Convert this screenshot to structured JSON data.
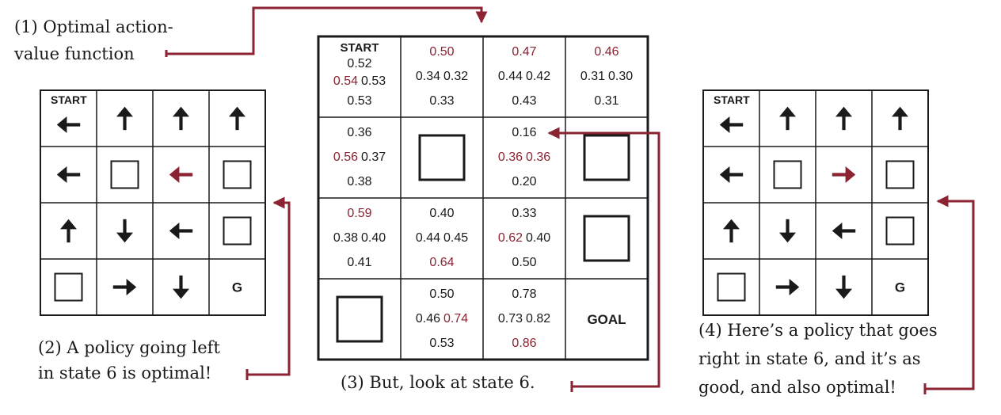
{
  "colors": {
    "accent": "#8b2332",
    "ink": "#1a1a1a",
    "grid": "#1a1a1a",
    "background": "#ffffff"
  },
  "captions": {
    "c1": [
      "(1) Optimal action-",
      "value function"
    ],
    "c2": [
      "(2) A policy going left",
      "in state 6 is optimal!"
    ],
    "c3": [
      "(3) But, look at state 6."
    ],
    "c4": [
      "(4) Here’s a policy that goes",
      "right in state 6, and it’s as",
      "good, and also optimal!"
    ]
  },
  "q_grid": {
    "start_label": "START",
    "goal_label": "GOAL",
    "cells": [
      {
        "state": 0,
        "type": "q",
        "up": "0.52",
        "left": "0.54",
        "right": "0.53",
        "down": "0.53",
        "best": [
          "left"
        ]
      },
      {
        "state": 1,
        "type": "q",
        "up": "0.50",
        "left": "0.34",
        "right": "0.32",
        "down": "0.33",
        "best": [
          "up"
        ]
      },
      {
        "state": 2,
        "type": "q",
        "up": "0.47",
        "left": "0.44",
        "right": "0.42",
        "down": "0.43",
        "best": [
          "up"
        ]
      },
      {
        "state": 3,
        "type": "q",
        "up": "0.46",
        "left": "0.31",
        "right": "0.30",
        "down": "0.31",
        "best": [
          "up"
        ]
      },
      {
        "state": 4,
        "type": "q",
        "up": "0.36",
        "left": "0.56",
        "right": "0.37",
        "down": "0.38",
        "best": [
          "left"
        ]
      },
      {
        "state": 5,
        "type": "wall"
      },
      {
        "state": 6,
        "type": "q",
        "up": "0.16",
        "left": "0.36",
        "right": "0.36",
        "down": "0.20",
        "best": [
          "left",
          "right"
        ]
      },
      {
        "state": 7,
        "type": "wall"
      },
      {
        "state": 8,
        "type": "q",
        "up": "0.59",
        "left": "0.38",
        "right": "0.40",
        "down": "0.41",
        "best": [
          "up"
        ]
      },
      {
        "state": 9,
        "type": "q",
        "up": "0.40",
        "left": "0.44",
        "right": "0.45",
        "down": "0.64",
        "best": [
          "down"
        ]
      },
      {
        "state": 10,
        "type": "q",
        "up": "0.33",
        "left": "0.62",
        "right": "0.40",
        "down": "0.50",
        "best": [
          "left"
        ]
      },
      {
        "state": 11,
        "type": "wall"
      },
      {
        "state": 12,
        "type": "wall"
      },
      {
        "state": 13,
        "type": "q",
        "up": "0.50",
        "left": "0.46",
        "right": "0.74",
        "down": "0.53",
        "best": [
          "right"
        ]
      },
      {
        "state": 14,
        "type": "q",
        "up": "0.78",
        "left": "0.73",
        "right": "0.82",
        "down": "0.86",
        "best": [
          "down"
        ]
      },
      {
        "state": 15,
        "type": "goal"
      }
    ]
  },
  "policy_left": {
    "start_label": "START",
    "goal_label": "G",
    "cells": [
      "left",
      "up",
      "up",
      "up",
      "left",
      "wall",
      "left-accent",
      "wall",
      "up",
      "down",
      "left",
      "wall",
      "wall",
      "right",
      "down",
      "goal"
    ]
  },
  "policy_right": {
    "start_label": "START",
    "goal_label": "G",
    "cells": [
      "left",
      "up",
      "up",
      "up",
      "left",
      "wall",
      "right-accent",
      "wall",
      "up",
      "down",
      "left",
      "wall",
      "wall",
      "right",
      "down",
      "goal"
    ]
  }
}
